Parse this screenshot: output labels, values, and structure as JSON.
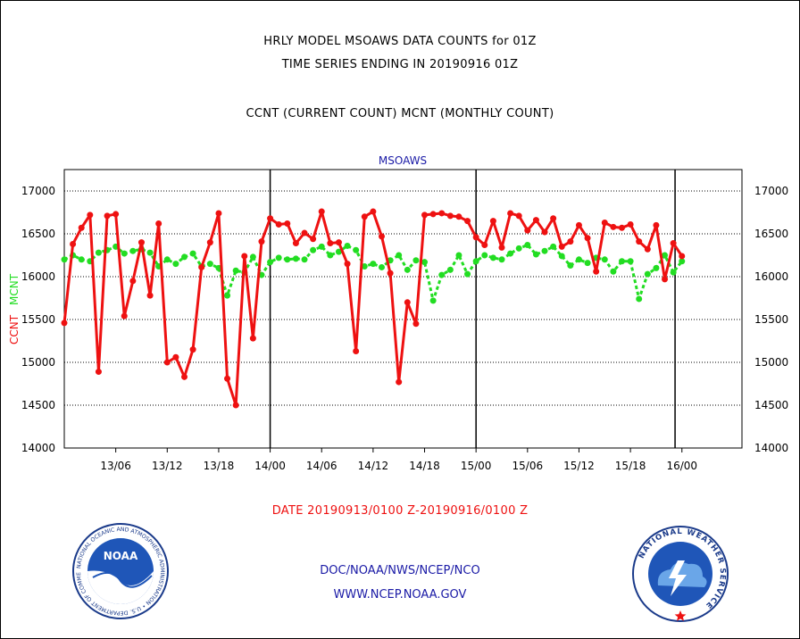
{
  "header": {
    "title_line1": "HRLY MODEL MSOAWS DATA COUNTS for 01Z",
    "title_line2": "TIME SERIES ENDING IN 20190916 01Z",
    "subtitle": "CCNT (CURRENT COUNT) MCNT (MONTHLY COUNT)"
  },
  "footer": {
    "date_range": "DATE 20190913/0100 Z-20190916/0100 Z",
    "org_path": "DOC/NOAA/NWS/NCEP/NCO",
    "website": "WWW.NCEP.NOAA.GOV"
  },
  "logos": {
    "noaa_text": "NOAA",
    "noaa_ring": "NATIONAL OCEANIC AND ATMOSPHERIC ADMINISTRATION • U.S. DEPARTMENT OF COMMERCE",
    "nws_ring": "NATIONAL WEATHER SERVICE"
  },
  "chart_data": {
    "type": "line",
    "title": "MSOAWS",
    "xlabel": "",
    "ylabel_ccnt": "CCNT",
    "ylabel_mcnt": "MCNT",
    "ylim": [
      14000,
      17250
    ],
    "yticks": [
      14000,
      14500,
      15000,
      15500,
      16000,
      16500,
      17000
    ],
    "xlim": [
      0,
      79
    ],
    "xtick_positions": [
      6,
      12,
      18,
      24,
      30,
      36,
      42,
      48,
      54,
      60,
      66,
      72
    ],
    "xtick_labels": [
      "13/06",
      "13/12",
      "13/18",
      "14/00",
      "14/06",
      "14/12",
      "14/18",
      "15/00",
      "15/06",
      "15/12",
      "15/18",
      "16/00"
    ],
    "vlines": [
      24,
      48,
      71.2
    ],
    "grid": true,
    "colors": {
      "ccnt": "#ee1111",
      "mcnt": "#22dd22",
      "title": "#1a1aa6"
    },
    "series": [
      {
        "name": "CCNT",
        "values": [
          15460,
          16380,
          16570,
          16720,
          14890,
          16710,
          16730,
          15540,
          15950,
          16400,
          15780,
          16620,
          15000,
          15060,
          14830,
          15150,
          16110,
          16400,
          16740,
          14810,
          14500,
          16240,
          15280,
          16410,
          16680,
          16610,
          16620,
          16390,
          16510,
          16440,
          16760,
          16390,
          16400,
          16150,
          15130,
          16700,
          16760,
          16470,
          16040,
          14770,
          15700,
          15450,
          16720,
          16730,
          16740,
          16710,
          16700,
          16650,
          16460,
          16370,
          16650,
          16340,
          16740,
          16710,
          16540,
          16660,
          16520,
          16680,
          16350,
          16410,
          16600,
          16450,
          16060,
          16630,
          16580,
          16570,
          16610,
          16410,
          16320,
          16600,
          15970,
          16390,
          16240
        ]
      },
      {
        "name": "MCNT",
        "values": [
          16200,
          16250,
          16200,
          16180,
          16280,
          16310,
          16350,
          16270,
          16300,
          16320,
          16280,
          16120,
          16200,
          16150,
          16230,
          16270,
          16120,
          16150,
          16100,
          15780,
          16070,
          16050,
          16230,
          16020,
          16170,
          16220,
          16200,
          16210,
          16200,
          16310,
          16350,
          16250,
          16290,
          16360,
          16310,
          16120,
          16150,
          16110,
          16190,
          16250,
          16080,
          16190,
          16170,
          15720,
          16020,
          16080,
          16250,
          16030,
          16180,
          16250,
          16220,
          16200,
          16270,
          16330,
          16370,
          16260,
          16300,
          16350,
          16240,
          16130,
          16200,
          16160,
          16220,
          16200,
          16060,
          16180,
          16180,
          15740,
          16030,
          16100,
          16250,
          16050,
          16180
        ]
      }
    ]
  }
}
